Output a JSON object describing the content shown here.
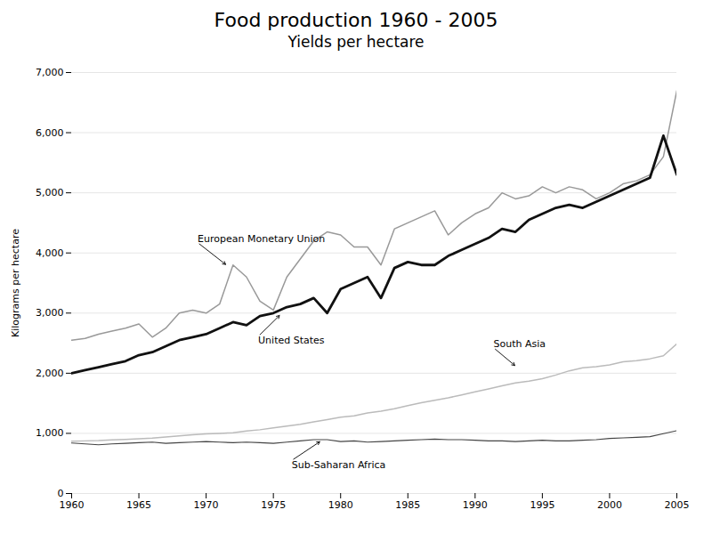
{
  "chart_data": {
    "type": "line",
    "title": "Food production 1960 - 2005",
    "subtitle": "Yields per hectare",
    "y_label": "Kilograms per hectare",
    "x": [
      1960,
      1961,
      1962,
      1963,
      1964,
      1965,
      1966,
      1967,
      1968,
      1969,
      1970,
      1971,
      1972,
      1973,
      1974,
      1975,
      1976,
      1977,
      1978,
      1979,
      1980,
      1981,
      1982,
      1983,
      1984,
      1985,
      1986,
      1987,
      1988,
      1989,
      1990,
      1991,
      1992,
      1993,
      1994,
      1995,
      1996,
      1997,
      1998,
      1999,
      2000,
      2001,
      2002,
      2003,
      2004,
      2005
    ],
    "series": [
      {
        "name": "South Asia",
        "color": "#bbbbbb",
        "values": [
          870,
          875,
          880,
          890,
          900,
          910,
          920,
          940,
          960,
          975,
          990,
          1000,
          1010,
          1040,
          1060,
          1090,
          1120,
          1150,
          1190,
          1230,
          1270,
          1290,
          1340,
          1370,
          1410,
          1460,
          1510,
          1550,
          1590,
          1640,
          1690,
          1740,
          1790,
          1840,
          1870,
          1910,
          1970,
          2040,
          2090,
          2110,
          2140,
          2190,
          2210,
          2240,
          2290,
          2490
        ]
      },
      {
        "name": "Sub-Saharan Africa",
        "color": "#444444",
        "values": [
          840,
          825,
          810,
          825,
          835,
          845,
          855,
          835,
          845,
          855,
          865,
          855,
          845,
          855,
          845,
          835,
          855,
          875,
          895,
          895,
          865,
          875,
          855,
          865,
          875,
          885,
          895,
          905,
          895,
          895,
          885,
          875,
          875,
          865,
          875,
          885,
          875,
          875,
          885,
          895,
          915,
          925,
          935,
          945,
          995,
          1045
        ]
      },
      {
        "name": "European Monetary Union",
        "color": "#999999",
        "values": [
          2550,
          2580,
          2650,
          2700,
          2750,
          2820,
          2600,
          2750,
          3000,
          3050,
          3000,
          3150,
          3800,
          3600,
          3200,
          3050,
          3600,
          3900,
          4200,
          4350,
          4300,
          4100,
          4100,
          3800,
          4400,
          4500,
          4600,
          4700,
          4300,
          4500,
          4650,
          4750,
          5000,
          4900,
          4950,
          5100,
          5000,
          5100,
          5050,
          4900,
          5000,
          5150,
          5200,
          5300,
          5600,
          6700
        ]
      },
      {
        "name": "United States",
        "color": "#111111",
        "values": [
          2000,
          2050,
          2100,
          2150,
          2200,
          2300,
          2350,
          2450,
          2550,
          2600,
          2650,
          2750,
          2850,
          2800,
          2950,
          3000,
          3100,
          3150,
          3250,
          3000,
          3400,
          3500,
          3600,
          3250,
          3750,
          3850,
          3800,
          3800,
          3950,
          4050,
          4150,
          4250,
          4400,
          4350,
          4550,
          4650,
          4750,
          4800,
          4750,
          4850,
          4950,
          5050,
          5150,
          5250,
          5950,
          5300
        ]
      }
    ],
    "xlim": [
      1960,
      2005
    ],
    "ylim": [
      0,
      7000
    ],
    "xticks": [
      1960,
      1965,
      1970,
      1975,
      1980,
      1985,
      1990,
      1995,
      2000,
      2005
    ],
    "yticks": [
      0,
      {
        "value": 1000,
        "label": "1,000"
      },
      {
        "value": 2000,
        "label": "2,000"
      },
      {
        "value": 3000,
        "label": "3,000"
      },
      {
        "value": 4000,
        "label": "4,000"
      },
      {
        "value": 5000,
        "label": "5,000"
      },
      {
        "value": 6000,
        "label": "6,000"
      },
      {
        "value": 7000,
        "label": "7,000"
      }
    ],
    "grid": true,
    "annotations": [
      {
        "text": "European Monetary Union",
        "x": 1971.5,
        "y": 3800,
        "text_x": 1969.5,
        "text_y": 4150
      },
      {
        "text": "United States",
        "x": 1975.5,
        "y": 2970,
        "text_x": 1974.0,
        "text_y": 2640
      },
      {
        "text": "South Asia",
        "x": 1993.0,
        "y": 2120,
        "text_x": 1991.5,
        "text_y": 2400
      },
      {
        "text": "Sub-Saharan Africa",
        "x": 1978.5,
        "y": 868,
        "text_x": 1976.5,
        "text_y": 570
      }
    ]
  }
}
